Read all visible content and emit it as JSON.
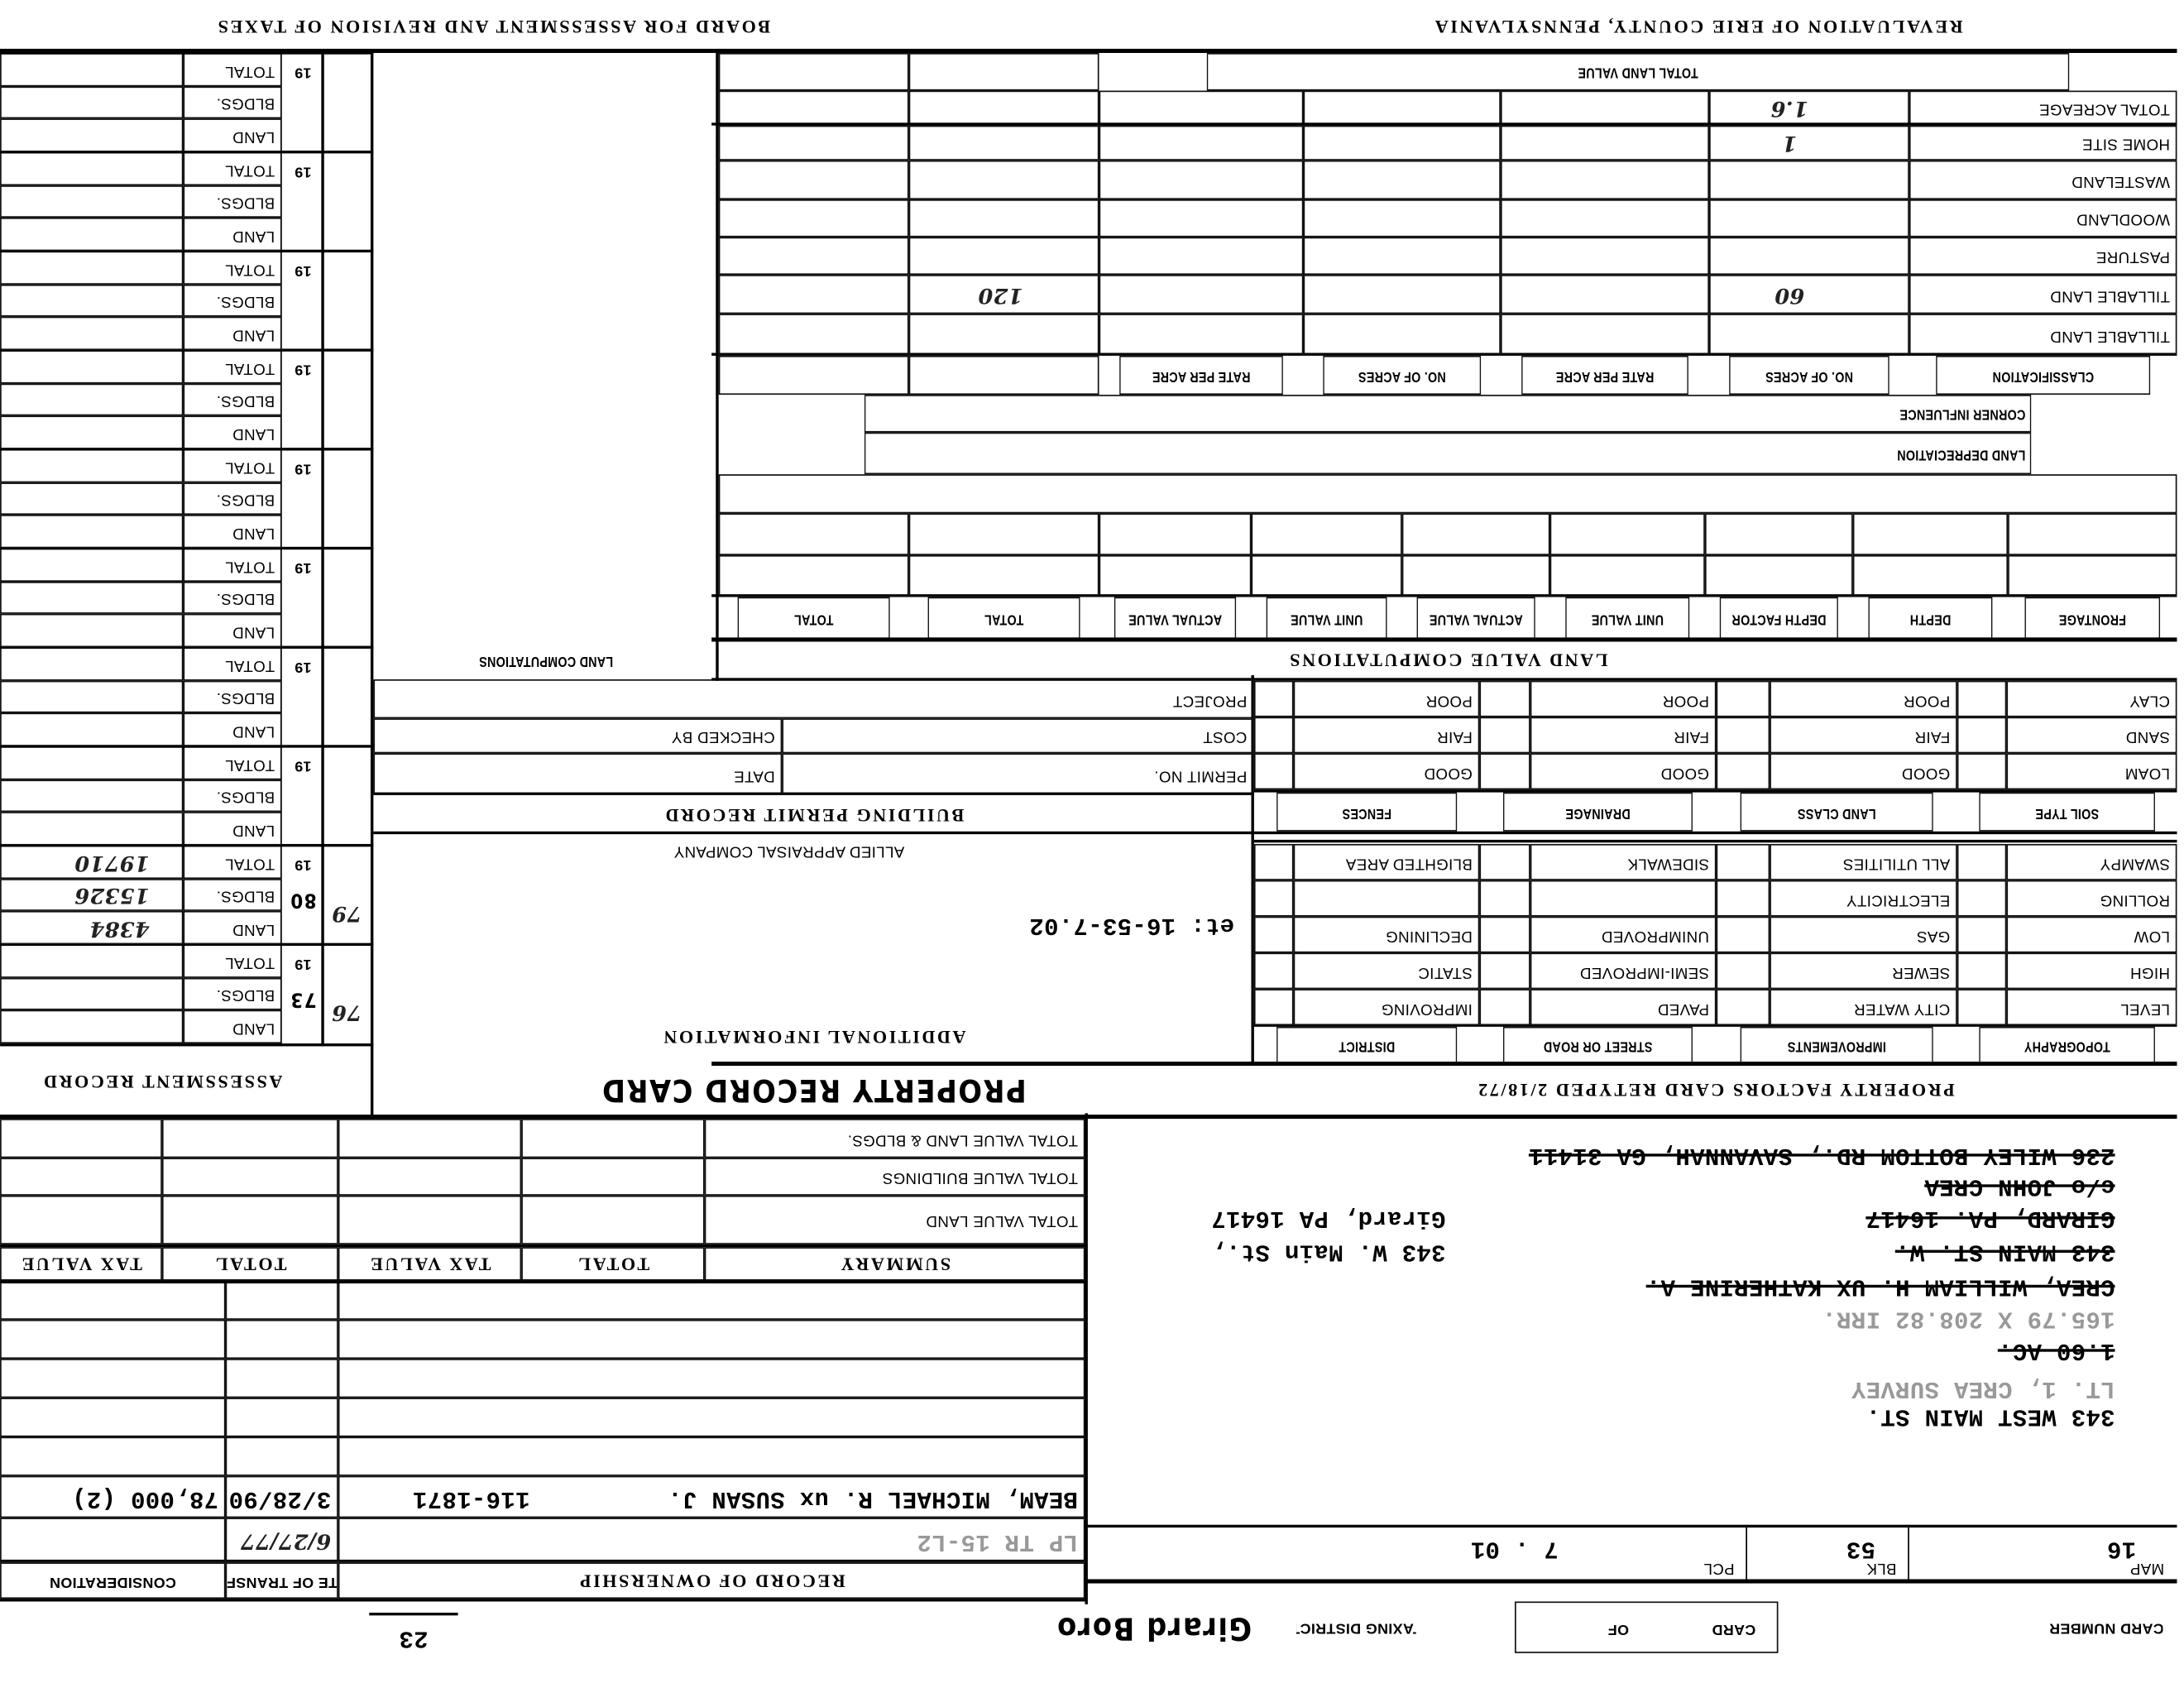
{
  "header": {
    "left_title": "REVALUATION OF ERIE COUNTY, PENNSYLVANIA",
    "right_title": "BOARD FOR ASSESSMENT AND REVISION OF TAXES"
  },
  "card": {
    "card_number_label": "CARD NUMBER",
    "card_label": "CARD",
    "of_label": "OF",
    "taxing_district_label": "TAXING DISTRICT",
    "taxing_district": "Girard Boro",
    "page_number": "23"
  },
  "parcel": {
    "map_label": "MAP",
    "map": "16",
    "blk_label": "BLK",
    "blk": "53",
    "pcl_label": "PCL",
    "pcl": "7 . 01"
  },
  "address": {
    "lines": [
      {
        "text": "343 WEST MAIN ST.",
        "struck": false,
        "faint": false
      },
      {
        "text": "LT. 1, CREA SURVEY",
        "struck": false,
        "faint": true
      },
      {
        "text": "1.60 AC.",
        "struck": true,
        "faint": false
      },
      {
        "text": "165.79 X 208.82 IRR.",
        "struck": false,
        "faint": true
      },
      {
        "text": "CREA, WILLIAM H. UX KATHERINE A.",
        "struck": true,
        "faint": false
      },
      {
        "text": "343 MAIN ST. W.",
        "struck": true,
        "faint": false
      },
      {
        "text": "GIRARD, PA. 16417",
        "struck": true,
        "faint": false
      },
      {
        "text": "c/o JOHN CREA",
        "struck": true,
        "faint": false
      },
      {
        "text": "236 WILEY BOTTOM RD., SAVANNAH, GA 31411",
        "struck": true,
        "faint": false
      }
    ],
    "new_lines": [
      "343 W. Main St.,",
      "Girard, PA 16417"
    ]
  },
  "ownership": {
    "title": "RECORD OF OWNERSHIP",
    "date_header": "DATE OF TRANSFER",
    "consideration_header": "CONSIDERATION",
    "rows": [
      {
        "name": "LP TR 15-L2",
        "deed": "",
        "date": "6/27/77",
        "consideration": ""
      },
      {
        "name": "BEAM, MICHAEL R. ux SUSAN J.",
        "deed": "116-1871",
        "date": "3/28/90",
        "consideration": "78,000 (2)"
      }
    ]
  },
  "summary": {
    "headers": [
      "SUMMARY",
      "TOTAL",
      "TAX VALUE",
      "TOTAL",
      "TAX VALUE"
    ],
    "rows": [
      "TOTAL VALUE LAND",
      "TOTAL VALUE BUILDINGS",
      "TOTAL VALUE LAND & BLDGS."
    ]
  },
  "property_record_title": "PROPERTY RECORD CARD",
  "property_factors": {
    "title": "PROPERTY FACTORS CARD RETYPED 2/18/72",
    "headers1": [
      "TOPOGRAPHY",
      "IMPROVEMENTS",
      "STREET OR ROAD",
      "DISTRICT"
    ],
    "rows1": [
      [
        "LEVEL",
        "CITY WATER",
        "PAVED",
        "IMPROVING"
      ],
      [
        "HIGH",
        "SEWER",
        "SEMI-IMPROVED",
        "STATIC"
      ],
      [
        "LOW",
        "GAS",
        "UNIMPROVED",
        "DECLINING"
      ],
      [
        "ROLLING",
        "ELECTRICITY",
        "",
        ""
      ],
      [
        "SWAMPY",
        "ALL UTILITIES",
        "SIDEWALK",
        "BLIGHTED AREA"
      ]
    ],
    "headers2": [
      "SOIL TYPE",
      "LAND CLASS",
      "DRAINAGE",
      "FENCES"
    ],
    "rows2": [
      [
        "LOAM",
        "GOOD",
        "GOOD",
        "GOOD"
      ],
      [
        "SAND",
        "FAIR",
        "FAIR",
        "FAIR"
      ],
      [
        "CLAY",
        "POOR",
        "POOR",
        "POOR"
      ]
    ]
  },
  "additional_info": {
    "title": "ADDITIONAL INFORMATION",
    "note": "et: 16-53-7.02",
    "company": "ALLIED APPRAISAL COMPANY"
  },
  "building_permit": {
    "title": "BUILDING PERMIT RECORD",
    "permit_no": "PERMIT NO.",
    "date": "DATE",
    "cost": "COST",
    "checked_by": "CHECKED BY",
    "project": "PROJECT"
  },
  "land_value_computations": "LAND VALUE COMPUTATIONS",
  "land_computations": "LAND COMPUTATIONS",
  "land_grid": {
    "front_headers": [
      "FRONTAGE",
      "DEPTH",
      "DEPTH FACTOR",
      "UNIT VALUE",
      "ACTUAL VALUE",
      "UNIT VALUE",
      "ACTUAL VALUE",
      "TOTAL",
      "TOTAL"
    ],
    "land_depreciation": "LAND DEPRECIATION",
    "corner_influence": "CORNER INFLUENCE",
    "classification_headers": [
      "CLASSIFICATION",
      "NO. OF ACRES",
      "RATE PER ACRE",
      "NO. OF ACRES",
      "RATE PER ACRE"
    ],
    "acre_rows": [
      {
        "label": "TILLABLE LAND",
        "acres": "",
        "total": ""
      },
      {
        "label": "TILLABLE LAND",
        "acres": "60",
        "total": "120"
      },
      {
        "label": "PASTURE",
        "acres": "",
        "total": ""
      },
      {
        "label": "WOODLAND",
        "acres": "",
        "total": ""
      },
      {
        "label": "WASTELAND",
        "acres": "",
        "total": ""
      },
      {
        "label": "HOME SITE",
        "acres": "1",
        "total": ""
      },
      {
        "label": "TOTAL ACREAGE",
        "acres": "1.6",
        "total": ""
      }
    ],
    "total_land_value": "TOTAL LAND VALUE"
  },
  "assessment": {
    "title": "ASSESSMENT RECORD",
    "year_prefix": "19",
    "row_labels": [
      "LAND",
      "BLDGS.",
      "TOTAL"
    ],
    "groups": [
      {
        "year": "73",
        "side": "76",
        "land": "",
        "bldgs": "",
        "total": ""
      },
      {
        "year": "80",
        "side": "79",
        "land": "4384",
        "bldgs": "15326",
        "total": "19710"
      },
      {
        "year": "",
        "side": "",
        "land": "",
        "bldgs": "",
        "total": ""
      },
      {
        "year": "",
        "side": "",
        "land": "",
        "bldgs": "",
        "total": ""
      },
      {
        "year": "",
        "side": "",
        "land": "",
        "bldgs": "",
        "total": ""
      },
      {
        "year": "",
        "side": "",
        "land": "",
        "bldgs": "",
        "total": ""
      },
      {
        "year": "",
        "side": "",
        "land": "",
        "bldgs": "",
        "total": ""
      },
      {
        "year": "",
        "side": "",
        "land": "",
        "bldgs": "",
        "total": ""
      },
      {
        "year": "",
        "side": "",
        "land": "",
        "bldgs": "",
        "total": ""
      },
      {
        "year": "",
        "side": "",
        "land": "",
        "bldgs": "",
        "total": ""
      }
    ]
  }
}
